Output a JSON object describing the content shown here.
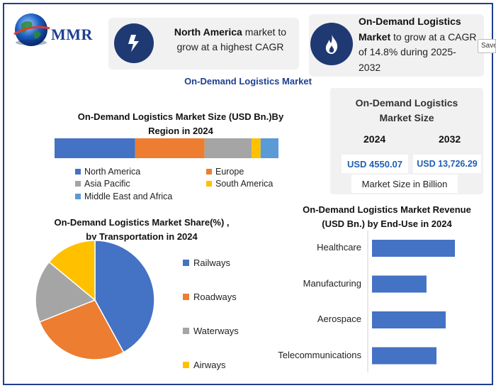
{
  "header": {
    "logo_text": "MMR",
    "card_north_america": {
      "bold": "North America",
      "rest_line1": " market to",
      "line2": "grow at a highest CAGR"
    },
    "card_ondemand": {
      "bold_line1": "On-Demand Logistics",
      "bold_line2": "Market",
      "rest_line2": " to grow at a CAGR",
      "line3": "of 14.8% during 2025-",
      "line4": "2032"
    },
    "save_tab": "Save"
  },
  "main_title": "On-Demand Logistics Market",
  "size_panel": {
    "title_line1": "On-Demand Logistics",
    "title_line2": "Market Size",
    "year1": "2024",
    "year2": "2032",
    "value1": "USD 4550.07",
    "value2": "USD 13,726.29",
    "unit": "Market Size in Billion"
  },
  "colors": {
    "blue": "#4472c4",
    "orange": "#ed7d31",
    "gray": "#a5a5a5",
    "yellow": "#ffc000",
    "light_blue": "#5b9bd5",
    "accent_navy": "#1f3f8f"
  },
  "chart_data": [
    {
      "type": "bar",
      "orientation": "horizontal-stacked",
      "title": "On-Demand Logistics Market Size (USD Bn.)By Region in 2024",
      "series": [
        {
          "name": "North America",
          "values": [
            36
          ]
        },
        {
          "name": "Europe",
          "values": [
            31
          ]
        },
        {
          "name": "Asia Pacific",
          "values": [
            21
          ]
        },
        {
          "name": "South America",
          "values": [
            4
          ]
        },
        {
          "name": "Middle East and Africa",
          "values": [
            8
          ]
        }
      ],
      "legend": "bottom"
    },
    {
      "type": "pie",
      "title_line1": "On-Demand Logistics Market Share(%)  ,",
      "title_line2": "by Transportation in 2024",
      "categories": [
        "Railways",
        "Roadways",
        "Waterways",
        "Airways"
      ],
      "values": [
        42,
        27,
        17,
        14
      ],
      "legend": "right"
    },
    {
      "type": "bar",
      "orientation": "horizontal",
      "title_line1": "On-Demand Logistics Market Revenue",
      "title_line2": "(USD Bn.) by End-Use in 2024",
      "categories": [
        "Healthcare",
        "Manufacturing",
        "Aerospace",
        "Telecommunications"
      ],
      "values": [
        108,
        71,
        96,
        84
      ],
      "xlim": [
        0,
        120
      ]
    }
  ]
}
